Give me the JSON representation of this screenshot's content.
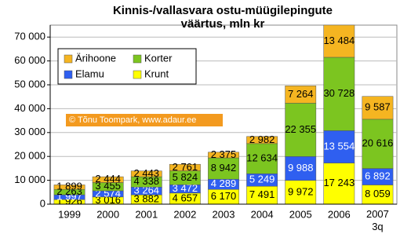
{
  "chart_data": {
    "type": "stacked_bar",
    "title": "Kinnis-/vallasvara ostu-müügilepingute\nväärtus, mln kr",
    "annotation": "© Tõnu Toompark, www.adaur.ee",
    "categories": [
      "1999",
      "2000",
      "2001",
      "2002",
      "2003",
      "2004",
      "2005",
      "2006",
      "2007\n3q"
    ],
    "series": [
      {
        "name": "Krunt",
        "color": "#ffff00",
        "values": [
          1926,
          3016,
          3882,
          4657,
          6170,
          7491,
          9972,
          17243,
          8059
        ],
        "value_labels": [
          "1 926",
          "3 016",
          "3 882",
          "4 657",
          "6 170",
          "7 491",
          "9 972",
          "17 243",
          "8 059"
        ]
      },
      {
        "name": "Elamu",
        "color": "#2f5ff0",
        "values": [
          1997,
          2574,
          3264,
          3472,
          4289,
          5249,
          9988,
          13554,
          6892
        ],
        "value_labels": [
          "1 997",
          "2 574",
          "3 264",
          "3 472",
          "4 289",
          "5 249",
          "9 988",
          "13 554",
          "6 892"
        ]
      },
      {
        "name": "Korter",
        "color": "#7cc520",
        "values": [
          2263,
          3455,
          4338,
          5824,
          8942,
          12634,
          22355,
          30728,
          20616
        ],
        "value_labels": [
          "2 263",
          "3 455",
          "4 338",
          "5 824",
          "8 942",
          "12 634",
          "22 355",
          "30 728",
          "20 616"
        ]
      },
      {
        "name": "Ärihoone",
        "color": "#f5b521",
        "values": [
          1899,
          2444,
          2443,
          2761,
          2375,
          2982,
          7264,
          13484,
          9587
        ],
        "value_labels": [
          "1 899",
          "2 444",
          "2 443",
          "2 761",
          "2 375",
          "2 982",
          "7 264",
          "13 484",
          "9 587"
        ]
      }
    ],
    "ylim": [
      0,
      75000
    ],
    "yticks": [
      0,
      {
        "value": 10000,
        "label": "10 000"
      },
      {
        "value": 20000,
        "label": "20 000"
      },
      {
        "value": 30000,
        "label": "30 000"
      },
      {
        "value": 40000,
        "label": "40 000"
      },
      {
        "value": 50000,
        "label": "50 000"
      },
      {
        "value": 60000,
        "label": "60 000"
      },
      {
        "value": 70000,
        "label": "70 000"
      }
    ],
    "grid": true
  }
}
